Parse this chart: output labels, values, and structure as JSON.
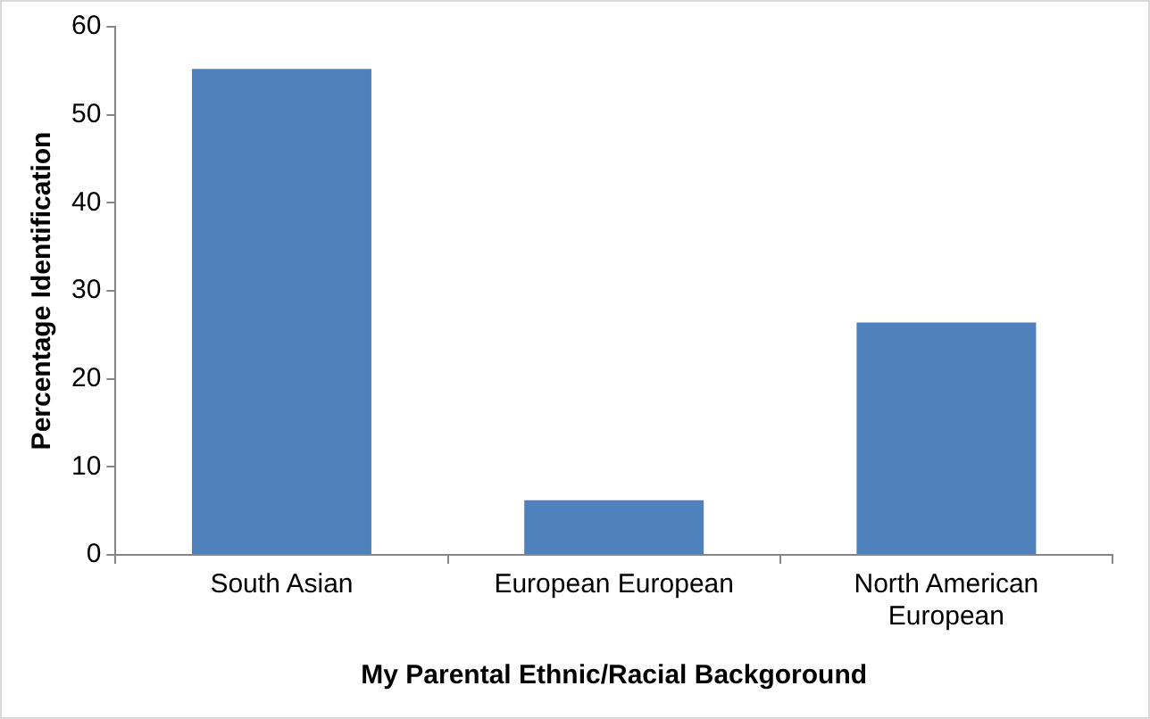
{
  "chart_data": {
    "type": "bar",
    "xlabel": "My Parental Ethnic/Racial Backgoround",
    "ylabel": "Percentage Identification",
    "categories": [
      "South Asian",
      "European European",
      "North American European"
    ],
    "values": [
      55.2,
      6.2,
      26.4
    ],
    "color": "#4f81bd",
    "ylim": [
      0,
      60
    ],
    "yticks": [
      0,
      10,
      20,
      30,
      40,
      50,
      60
    ],
    "grid": false,
    "legend": false
  }
}
